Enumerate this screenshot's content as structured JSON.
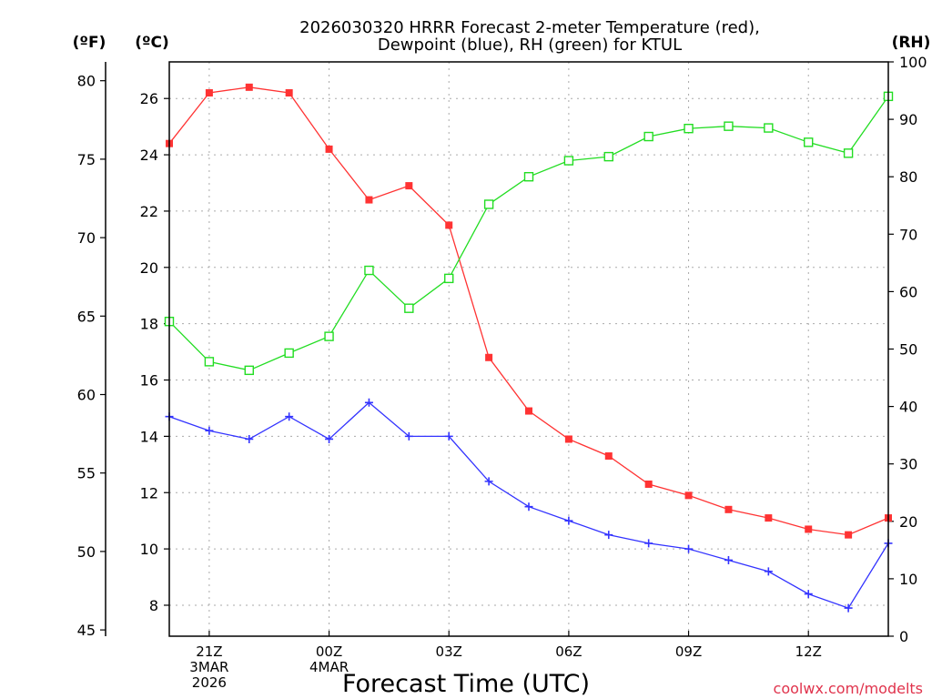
{
  "chart_data": {
    "type": "line",
    "title_line1": "2026030320 HRRR Forecast 2-meter Temperature (red),",
    "title_line2": "Dewpoint (blue), RH (green) for KTUL",
    "xlabel": "Forecast Time (UTC)",
    "credit": "coolwx.com/modelts",
    "left_outer_unit": "(ºF)",
    "left_inner_unit": "(ºC)",
    "right_unit": "(RH)",
    "x_ticks": [
      {
        "hour": 21,
        "lines": [
          "21Z",
          "3MAR",
          "2026"
        ]
      },
      {
        "hour": 24,
        "lines": [
          "00Z",
          "4MAR"
        ]
      },
      {
        "hour": 27,
        "lines": [
          "03Z"
        ]
      },
      {
        "hour": 30,
        "lines": [
          "06Z"
        ]
      },
      {
        "hour": 33,
        "lines": [
          "09Z"
        ]
      },
      {
        "hour": 36,
        "lines": [
          "12Z"
        ]
      }
    ],
    "xlim": [
      20,
      38
    ],
    "celsius_axis": {
      "ylim": [
        6.9,
        27.3
      ],
      "ticks": [
        8,
        10,
        12,
        14,
        16,
        18,
        20,
        22,
        24,
        26
      ]
    },
    "fahrenheit_axis": {
      "ylim": [
        44.6,
        81.2
      ],
      "ticks": [
        45,
        50,
        55,
        60,
        65,
        70,
        75,
        80
      ]
    },
    "rh_axis": {
      "ylim": [
        0,
        100
      ],
      "ticks": [
        0,
        10,
        20,
        30,
        40,
        50,
        60,
        70,
        80,
        90,
        100
      ]
    },
    "x": [
      20,
      21,
      22,
      23,
      24,
      25,
      26,
      27,
      28,
      29,
      30,
      31,
      32,
      33,
      34,
      35,
      36,
      37,
      38
    ],
    "series": [
      {
        "name": "Temperature",
        "unit": "C",
        "color": "#ff3333",
        "marker": "filled-square",
        "values": [
          24.4,
          26.2,
          26.4,
          26.2,
          24.2,
          22.4,
          22.9,
          21.5,
          16.8,
          14.9,
          13.9,
          13.3,
          12.3,
          11.9,
          11.4,
          11.1,
          10.7,
          10.5,
          11.1
        ]
      },
      {
        "name": "Dewpoint",
        "unit": "C",
        "color": "#3333ff",
        "marker": "plus",
        "values": [
          14.7,
          14.2,
          13.9,
          14.7,
          13.9,
          15.2,
          14.0,
          14.0,
          12.4,
          11.5,
          11.0,
          10.5,
          10.2,
          10.0,
          9.6,
          9.2,
          8.4,
          7.9,
          10.2
        ]
      },
      {
        "name": "RH",
        "unit": "%",
        "color": "#22dd22",
        "marker": "open-square",
        "values": [
          54.8,
          47.8,
          46.3,
          49.3,
          52.2,
          63.7,
          57.1,
          62.3,
          75.2,
          80.0,
          82.8,
          83.5,
          87.0,
          88.4,
          88.8,
          88.5,
          86.0,
          84.1,
          94.0
        ]
      }
    ]
  }
}
